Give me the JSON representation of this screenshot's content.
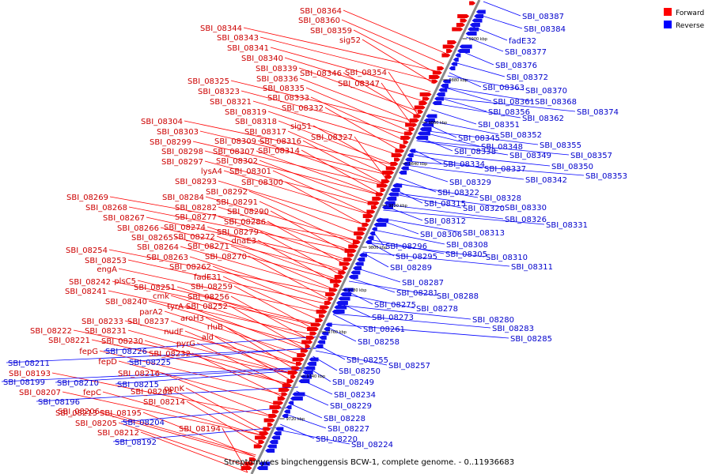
{
  "caption": "Streptomyces bingchenggensis BCW-1, complete genome. - 0..11936683",
  "legend": [
    {
      "label": "Forward",
      "color": "#ff0000"
    },
    {
      "label": "Reverse",
      "color": "#0000ff"
    }
  ],
  "ticks": [
    "9900 kbp",
    "9880 kbp",
    "9860 kbp",
    "9840 kbp",
    "9820 kbp",
    "9800 kbp",
    "9780 kbp",
    "9760 kbp",
    "9740 kbp",
    "9720 kbp"
  ],
  "forward_labels": [
    "SBI_08364",
    "SBI_08360",
    "SBI_08359",
    "sig52",
    "SBI_08344",
    "SBI_08343",
    "SBI_08341",
    "SBI_08340",
    "SBI_08346",
    "SBI_08354",
    "SBI_08339",
    "SBI_08336",
    "SBI_08347",
    "SBI_08335",
    "SBI_08325",
    "SBI_08323",
    "SBI_08333",
    "SBI_08321",
    "SBI_08332",
    "SBI_08319",
    "SBI_08304",
    "SBI_08318",
    "sig51",
    "SBI_08303",
    "SBI_08317",
    "SBI_08327",
    "SBI_08299",
    "SBI_08309",
    "SBI_08316",
    "SBI_08298",
    "SBI_08307",
    "SBI_08314",
    "SBI_08297",
    "SBI_08302",
    "lysA4",
    "SBI_08301",
    "SBI_08293",
    "SBI_08300",
    "SBI_08292",
    "SBI_08269",
    "SBI_08284",
    "SBI_08291",
    "SBI_08268",
    "SBI_08282",
    "SBI_08290",
    "SBI_08267",
    "SBI_08277",
    "SBI_08286",
    "SBI_08266",
    "SBI_08274",
    "SBI_08279",
    "SBI_08265",
    "SBI_08272",
    "dnaE3",
    "SBI_08264",
    "SBI_08271",
    "SBI_08254",
    "SBI_08263",
    "SBI_08270",
    "SBI_08253",
    "SBI_08262",
    "engA",
    "fadE31",
    "SBI_08242",
    "plsC5",
    "SBI_08251",
    "SBI_08259",
    "SBI_08241",
    "cmk",
    "SBI_08256",
    "SBI_08240",
    "tyrA",
    "SBI_08252",
    "parA2",
    "aroH3",
    "SBI_08233",
    "SBI_08237",
    "rluB",
    "SBI_08222",
    "SBI_08231",
    "nudF",
    "ald",
    "SBI_08221",
    "SBI_08230",
    "pyrG",
    "fepG",
    "SBI_08232",
    "fepD",
    "SBI_08216",
    "ppnK",
    "fepC",
    "SBI_08208",
    "SBI_08214",
    "SBI_08213",
    "SBI_08206",
    "SBI_08195",
    "SBI_08205",
    "SBI_08194",
    "SBI_08212",
    "SBI_08193",
    "SBI_08207",
    "SBI_08197"
  ],
  "reverse_labels": [
    "SBI_08387",
    "SBI_08384",
    "fadE32",
    "SBI_08377",
    "SBI_08376",
    "SBI_08372",
    "SBI_08363",
    "SBI_08370",
    "SBI_08361",
    "SBI_08368",
    "SBI_08374",
    "SBI_08356",
    "SBI_08362",
    "SBI_08351",
    "SBI_08352",
    "SBI_08345",
    "SBI_08348",
    "SBI_08355",
    "SBI_08338",
    "SBI_08349",
    "SBI_08357",
    "SBI_08334",
    "SBI_08350",
    "SBI_08337",
    "SBI_08342",
    "SBI_08353",
    "SBI_08329",
    "SBI_08322",
    "SBI_08328",
    "SBI_08315",
    "SBI_08320",
    "SBI_08330",
    "SBI_08312",
    "SBI_08326",
    "SBI_08331",
    "SBI_08306",
    "SBI_08313",
    "SBI_08296",
    "SBI_08308",
    "SBI_08295",
    "SBI_08305",
    "SBI_08310",
    "SBI_08289",
    "SBI_08311",
    "SBI_08287",
    "SBI_08281",
    "SBI_08288",
    "SBI_08275",
    "SBI_08278",
    "SBI_08273",
    "SBI_08280",
    "SBI_08261",
    "SBI_08283",
    "SBI_08258",
    "SBI_08285",
    "SBI_08255",
    "SBI_08257",
    "SBI_08250",
    "SBI_08249",
    "SBI_08234",
    "SBI_08229",
    "SBI_08228",
    "SBI_08227",
    "SBI_08220",
    "SBI_08224",
    "SBI_08226",
    "SBI_08225",
    "SBI_08211",
    "SBI_08199",
    "SBI_08210",
    "SBI_08215",
    "SBI_08196",
    "SBI_08204",
    "SBI_08192"
  ]
}
